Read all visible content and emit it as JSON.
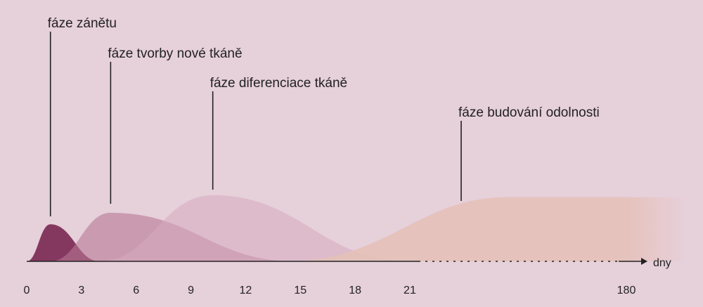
{
  "chart_data": {
    "type": "area",
    "title": "",
    "xlabel": "dny",
    "ylabel": "",
    "x_ticks": [
      "0",
      "3",
      "6",
      "9",
      "12",
      "15",
      "18",
      "21",
      "180"
    ],
    "axis_break_after": "21",
    "grid": false,
    "legend": "none",
    "series": [
      {
        "name": "fáze zánětu",
        "start_day": 0,
        "peak_day": 1.3,
        "end_day": 4,
        "peak_level": 0.55,
        "color": "#7d2a55"
      },
      {
        "name": "fáze tvorby nové tkáně",
        "start_day": 1.3,
        "peak_day": 4.6,
        "end_day": 14.7,
        "peak_level": 0.72,
        "color": "#b87895"
      },
      {
        "name": "fáze diferenciace tkáně",
        "start_day": 4,
        "peak_day": 10.2,
        "end_day": 21,
        "peak_level": 0.98,
        "color": "#d6aabf"
      },
      {
        "name": "fáze budování odolnosti",
        "start_day": 14.3,
        "peak_day": 180,
        "end_day": null,
        "peak_level": 0.95,
        "color": "#e5c0b8"
      }
    ]
  },
  "colors": {
    "background": "#e6d0da",
    "axis": "#222222"
  }
}
